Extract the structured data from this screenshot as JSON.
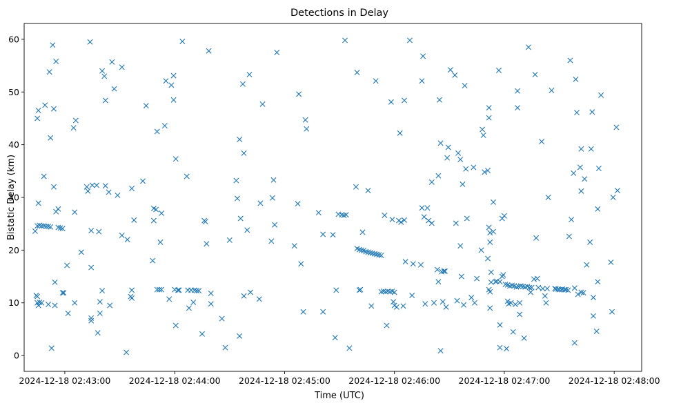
{
  "chart_data": {
    "type": "scatter",
    "title": "Detections in Delay",
    "xlabel": "Time (UTC)",
    "ylabel": "Bistatic Delay (km)",
    "marker": "x",
    "color": "#1f77b4",
    "xlim_minutes": [
      -0.37,
      5.25
    ],
    "ylim": [
      -3,
      63
    ],
    "x_ticks": [
      {
        "value": 0,
        "label": "2024-12-18 02:43:00"
      },
      {
        "value": 1,
        "label": "2024-12-18 02:44:00"
      },
      {
        "value": 2,
        "label": "2024-12-18 02:45:00"
      },
      {
        "value": 3,
        "label": "2024-12-18 02:46:00"
      },
      {
        "value": 4,
        "label": "2024-12-18 02:47:00"
      },
      {
        "value": 5,
        "label": "2024-12-18 02:48:00"
      }
    ],
    "y_ticks": [
      {
        "value": 0,
        "label": "0"
      },
      {
        "value": 10,
        "label": "10"
      },
      {
        "value": 20,
        "label": "20"
      },
      {
        "value": 30,
        "label": "30"
      },
      {
        "value": 40,
        "label": "40"
      },
      {
        "value": 50,
        "label": "50"
      },
      {
        "value": 60,
        "label": "60"
      }
    ],
    "x_unit": "minutes after 2024-12-18 02:43:00 UTC",
    "points": [
      [
        -0.27,
        23.6
      ],
      [
        -0.25,
        24.6
      ],
      [
        -0.23,
        24.7
      ],
      [
        -0.21,
        24.6
      ],
      [
        -0.19,
        24.6
      ],
      [
        -0.17,
        24.5
      ],
      [
        -0.15,
        24.5
      ],
      [
        -0.13,
        24.4
      ],
      [
        -0.06,
        24.3
      ],
      [
        -0.04,
        24.2
      ],
      [
        -0.02,
        24.1
      ],
      [
        -0.26,
        11.4
      ],
      [
        -0.25,
        11.2
      ],
      [
        -0.25,
        10.0
      ],
      [
        -0.24,
        9.5
      ],
      [
        -0.23,
        10.1
      ],
      [
        -0.21,
        10.0
      ],
      [
        -0.25,
        45.0
      ],
      [
        -0.24,
        46.5
      ],
      [
        -0.24,
        28.9
      ],
      [
        -0.18,
        47.5
      ],
      [
        -0.19,
        34.0
      ],
      [
        -0.14,
        53.8
      ],
      [
        -0.13,
        41.3
      ],
      [
        -0.1,
        46.8
      ],
      [
        -0.11,
        58.9
      ],
      [
        -0.08,
        55.8
      ],
      [
        -0.1,
        32.0
      ],
      [
        -0.08,
        27.3
      ],
      [
        -0.06,
        27.8
      ],
      [
        -0.09,
        13.9
      ],
      [
        -0.02,
        11.9
      ],
      [
        -0.01,
        11.9
      ],
      [
        -0.15,
        9.7
      ],
      [
        -0.09,
        9.5
      ],
      [
        -0.12,
        1.4
      ],
      [
        0.02,
        17.1
      ],
      [
        0.03,
        8.0
      ],
      [
        0.1,
        44.6
      ],
      [
        0.08,
        43.2
      ],
      [
        0.09,
        27.2
      ],
      [
        0.09,
        10.0
      ],
      [
        0.15,
        19.6
      ],
      [
        0.23,
        59.5
      ],
      [
        0.2,
        32.0
      ],
      [
        0.21,
        31.2
      ],
      [
        0.25,
        32.3
      ],
      [
        0.29,
        32.3
      ],
      [
        0.24,
        23.7
      ],
      [
        0.24,
        16.7
      ],
      [
        0.24,
        6.6
      ],
      [
        0.24,
        7.1
      ],
      [
        0.3,
        4.3
      ],
      [
        0.31,
        23.5
      ],
      [
        0.34,
        54.0
      ],
      [
        0.36,
        53.0
      ],
      [
        0.37,
        48.4
      ],
      [
        0.37,
        32.2
      ],
      [
        0.32,
        10.2
      ],
      [
        0.32,
        8.0
      ],
      [
        0.34,
        12.3
      ],
      [
        0.4,
        31.0
      ],
      [
        0.41,
        9.5
      ],
      [
        0.43,
        55.7
      ],
      [
        0.45,
        50.6
      ],
      [
        0.48,
        30.4
      ],
      [
        0.52,
        54.7
      ],
      [
        0.52,
        22.8
      ],
      [
        0.57,
        22.0
      ],
      [
        0.56,
        0.6
      ],
      [
        0.61,
        31.7
      ],
      [
        0.63,
        25.7
      ],
      [
        0.6,
        11.2
      ],
      [
        0.61,
        12.4
      ],
      [
        0.61,
        10.9
      ],
      [
        0.71,
        33.1
      ],
      [
        0.74,
        47.4
      ],
      [
        0.8,
        18.0
      ],
      [
        0.81,
        25.6
      ],
      [
        0.81,
        27.9
      ],
      [
        0.83,
        27.7
      ],
      [
        0.84,
        42.5
      ],
      [
        0.84,
        12.5
      ],
      [
        0.86,
        12.5
      ],
      [
        0.88,
        12.5
      ],
      [
        0.87,
        21.5
      ],
      [
        0.88,
        27.0
      ],
      [
        0.91,
        43.6
      ],
      [
        0.92,
        52.1
      ],
      [
        0.95,
        10.7
      ],
      [
        0.97,
        51.3
      ],
      [
        0.99,
        53.1
      ],
      [
        0.99,
        48.5
      ],
      [
        1.01,
        37.3
      ],
      [
        1.0,
        12.5
      ],
      [
        1.01,
        5.7
      ],
      [
        1.03,
        12.4
      ],
      [
        1.04,
        12.4
      ],
      [
        1.07,
        59.6
      ],
      [
        1.11,
        34.0
      ],
      [
        1.12,
        12.4
      ],
      [
        1.13,
        9.0
      ],
      [
        1.15,
        12.4
      ],
      [
        1.17,
        10.1
      ],
      [
        1.18,
        12.4
      ],
      [
        1.2,
        12.3
      ],
      [
        1.22,
        12.3
      ],
      [
        1.25,
        4.1
      ],
      [
        1.27,
        25.6
      ],
      [
        1.28,
        25.4
      ],
      [
        1.29,
        21.2
      ],
      [
        1.31,
        57.8
      ],
      [
        1.33,
        11.8
      ],
      [
        1.33,
        9.8
      ],
      [
        1.43,
        7.0
      ],
      [
        1.46,
        1.5
      ],
      [
        1.5,
        21.9
      ],
      [
        1.56,
        33.2
      ],
      [
        1.57,
        29.8
      ],
      [
        1.6,
        26.0
      ],
      [
        1.59,
        41.0
      ],
      [
        1.59,
        3.7
      ],
      [
        1.62,
        51.5
      ],
      [
        1.63,
        38.4
      ],
      [
        1.63,
        11.3
      ],
      [
        1.66,
        23.8
      ],
      [
        1.68,
        53.3
      ],
      [
        1.69,
        12.0
      ],
      [
        1.78,
        28.9
      ],
      [
        1.77,
        10.7
      ],
      [
        1.8,
        47.7
      ],
      [
        1.88,
        21.7
      ],
      [
        1.89,
        29.9
      ],
      [
        1.9,
        33.3
      ],
      [
        1.91,
        24.8
      ],
      [
        1.93,
        57.5
      ],
      [
        2.09,
        20.8
      ],
      [
        2.12,
        28.8
      ],
      [
        2.13,
        49.6
      ],
      [
        2.15,
        17.4
      ],
      [
        2.17,
        8.3
      ],
      [
        2.19,
        44.7
      ],
      [
        2.2,
        43.0
      ],
      [
        2.31,
        27.1
      ],
      [
        2.35,
        23.0
      ],
      [
        2.35,
        8.3
      ],
      [
        2.44,
        22.9
      ],
      [
        2.46,
        3.4
      ],
      [
        2.47,
        12.4
      ],
      [
        2.49,
        26.8
      ],
      [
        2.52,
        26.7
      ],
      [
        2.54,
        26.6
      ],
      [
        2.55,
        59.8
      ],
      [
        2.56,
        26.7
      ],
      [
        2.59,
        1.4
      ],
      [
        2.65,
        32.0
      ],
      [
        2.66,
        53.7
      ],
      [
        2.68,
        12.4
      ],
      [
        2.69,
        12.5
      ],
      [
        2.66,
        20.3
      ],
      [
        2.68,
        20.1
      ],
      [
        2.7,
        20.0
      ],
      [
        2.72,
        19.9
      ],
      [
        2.74,
        19.7
      ],
      [
        2.76,
        19.6
      ],
      [
        2.78,
        19.5
      ],
      [
        2.8,
        19.4
      ],
      [
        2.82,
        19.3
      ],
      [
        2.84,
        19.2
      ],
      [
        2.86,
        19.1
      ],
      [
        2.88,
        19.0
      ],
      [
        2.71,
        23.4
      ],
      [
        2.76,
        31.3
      ],
      [
        2.79,
        9.4
      ],
      [
        2.83,
        52.1
      ],
      [
        2.88,
        12.1
      ],
      [
        2.9,
        12.2
      ],
      [
        2.92,
        12.1
      ],
      [
        2.94,
        12.2
      ],
      [
        2.96,
        12.1
      ],
      [
        2.98,
        12.2
      ],
      [
        3.0,
        12.0
      ],
      [
        2.91,
        26.6
      ],
      [
        2.93,
        5.7
      ],
      [
        2.97,
        48.1
      ],
      [
        2.98,
        25.8
      ],
      [
        2.99,
        10.2
      ],
      [
        3.0,
        9.5
      ],
      [
        3.02,
        9.2
      ],
      [
        3.04,
        25.6
      ],
      [
        3.05,
        42.2
      ],
      [
        3.06,
        25.3
      ],
      [
        3.08,
        9.4
      ],
      [
        3.09,
        25.7
      ],
      [
        3.09,
        48.4
      ],
      [
        3.1,
        17.8
      ],
      [
        3.14,
        59.8
      ],
      [
        3.16,
        11.4
      ],
      [
        3.17,
        17.4
      ],
      [
        3.24,
        17.2
      ],
      [
        3.25,
        52.1
      ],
      [
        3.26,
        56.8
      ],
      [
        3.25,
        28.0
      ],
      [
        3.27,
        26.3
      ],
      [
        3.28,
        9.8
      ],
      [
        3.3,
        28.0
      ],
      [
        3.31,
        25.6
      ],
      [
        3.34,
        25.1
      ],
      [
        3.34,
        32.9
      ],
      [
        3.36,
        10.0
      ],
      [
        3.39,
        16.3
      ],
      [
        3.4,
        34.1
      ],
      [
        3.4,
        14.0
      ],
      [
        3.41,
        48.5
      ],
      [
        3.42,
        40.3
      ],
      [
        3.42,
        0.9
      ],
      [
        3.43,
        15.9
      ],
      [
        3.44,
        10.2
      ],
      [
        3.45,
        16.0
      ],
      [
        3.46,
        16.0
      ],
      [
        3.47,
        9.2
      ],
      [
        3.48,
        37.5
      ],
      [
        3.49,
        39.5
      ],
      [
        3.51,
        54.2
      ],
      [
        3.55,
        53.2
      ],
      [
        3.56,
        25.1
      ],
      [
        3.57,
        10.4
      ],
      [
        3.58,
        38.4
      ],
      [
        3.6,
        37.2
      ],
      [
        3.6,
        20.8
      ],
      [
        3.61,
        15.0
      ],
      [
        3.62,
        32.5
      ],
      [
        3.63,
        9.6
      ],
      [
        3.64,
        51.2
      ],
      [
        3.65,
        35.4
      ],
      [
        3.66,
        26.0
      ],
      [
        3.7,
        11.0
      ],
      [
        3.72,
        35.7
      ],
      [
        3.73,
        10.0
      ],
      [
        3.75,
        14.6
      ],
      [
        3.79,
        20.0
      ],
      [
        3.8,
        42.9
      ],
      [
        3.81,
        41.8
      ],
      [
        3.82,
        34.8
      ],
      [
        3.85,
        35.1
      ],
      [
        3.85,
        18.4
      ],
      [
        3.86,
        47.0
      ],
      [
        3.86,
        45.1
      ],
      [
        3.86,
        24.3
      ],
      [
        3.87,
        23.3
      ],
      [
        3.87,
        21.5
      ],
      [
        3.86,
        12.5
      ],
      [
        3.87,
        12.1
      ],
      [
        3.87,
        9.0
      ],
      [
        3.88,
        15.8
      ],
      [
        3.88,
        13.9
      ],
      [
        3.9,
        29.1
      ],
      [
        3.9,
        23.5
      ],
      [
        3.92,
        14.0
      ],
      [
        3.93,
        14.1
      ],
      [
        3.95,
        54.1
      ],
      [
        3.96,
        5.8
      ],
      [
        3.96,
        1.5
      ],
      [
        3.96,
        14.0
      ],
      [
        3.98,
        15.0
      ],
      [
        3.98,
        26.0
      ],
      [
        3.99,
        15.3
      ],
      [
        4.0,
        26.5
      ],
      [
        4.01,
        13.5
      ],
      [
        4.02,
        1.3
      ],
      [
        4.03,
        13.4
      ],
      [
        4.03,
        10.3
      ],
      [
        4.04,
        9.8
      ],
      [
        4.05,
        13.2
      ],
      [
        4.06,
        10.0
      ],
      [
        4.07,
        13.3
      ],
      [
        4.08,
        4.5
      ],
      [
        4.09,
        13.2
      ],
      [
        4.1,
        9.7
      ],
      [
        4.11,
        13.0
      ],
      [
        4.12,
        50.2
      ],
      [
        4.13,
        13.1
      ],
      [
        4.12,
        47.0
      ],
      [
        4.14,
        7.8
      ],
      [
        4.14,
        10.0
      ],
      [
        4.15,
        13.2
      ],
      [
        4.17,
        13.1
      ],
      [
        4.18,
        3.3
      ],
      [
        4.19,
        13.0
      ],
      [
        4.21,
        13.1
      ],
      [
        4.22,
        58.5
      ],
      [
        4.23,
        12.9
      ],
      [
        4.24,
        12.0
      ],
      [
        4.25,
        12.9
      ],
      [
        4.27,
        14.5
      ],
      [
        4.28,
        53.3
      ],
      [
        4.29,
        22.3
      ],
      [
        4.3,
        14.6
      ],
      [
        4.31,
        12.9
      ],
      [
        4.34,
        40.6
      ],
      [
        4.35,
        12.7
      ],
      [
        4.37,
        11.3
      ],
      [
        4.38,
        10.0
      ],
      [
        4.39,
        12.7
      ],
      [
        4.4,
        30.0
      ],
      [
        4.43,
        50.3
      ],
      [
        4.46,
        12.7
      ],
      [
        4.47,
        12.6
      ],
      [
        4.49,
        12.6
      ],
      [
        4.5,
        12.5
      ],
      [
        4.52,
        12.5
      ],
      [
        4.53,
        12.6
      ],
      [
        4.55,
        12.5
      ],
      [
        4.56,
        12.5
      ],
      [
        4.58,
        12.4
      ],
      [
        4.59,
        22.6
      ],
      [
        4.6,
        56.0
      ],
      [
        4.61,
        25.8
      ],
      [
        4.63,
        34.6
      ],
      [
        4.64,
        2.4
      ],
      [
        4.64,
        12.8
      ],
      [
        4.65,
        52.4
      ],
      [
        4.66,
        46.1
      ],
      [
        4.67,
        11.6
      ],
      [
        4.69,
        35.7
      ],
      [
        4.7,
        39.2
      ],
      [
        4.7,
        31.2
      ],
      [
        4.7,
        12.0
      ],
      [
        4.72,
        11.9
      ],
      [
        4.73,
        33.5
      ],
      [
        4.75,
        17.2
      ],
      [
        4.78,
        21.5
      ],
      [
        4.79,
        39.2
      ],
      [
        4.8,
        46.2
      ],
      [
        4.81,
        7.5
      ],
      [
        4.81,
        11.0
      ],
      [
        4.84,
        4.6
      ],
      [
        4.85,
        27.8
      ],
      [
        4.85,
        14.0
      ],
      [
        4.86,
        35.5
      ],
      [
        4.88,
        49.4
      ],
      [
        4.97,
        17.7
      ],
      [
        4.98,
        8.3
      ],
      [
        4.99,
        30.0
      ],
      [
        5.02,
        43.3
      ],
      [
        5.03,
        31.3
      ]
    ]
  }
}
